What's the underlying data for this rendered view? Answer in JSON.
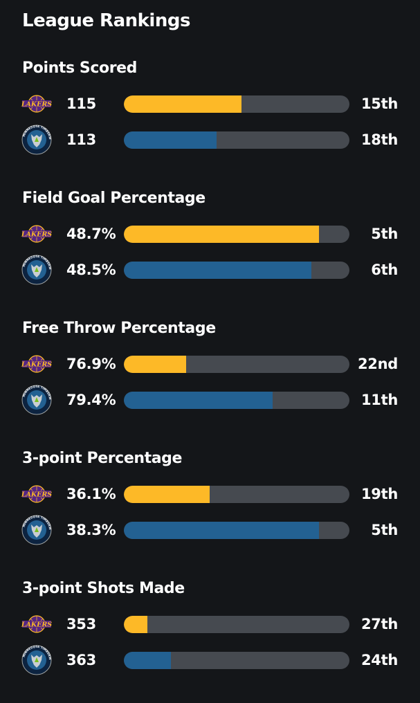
{
  "page": {
    "title": "League Rankings"
  },
  "colors": {
    "background": "#141619",
    "track": "#464a50",
    "lakers": "#fdb927",
    "timberwolves": "#236192"
  },
  "teams": [
    {
      "key": "lakers",
      "logo_icon": "lakers-logo-icon",
      "logo_text": "LAKERS"
    },
    {
      "key": "timberwolves",
      "logo_icon": "timberwolves-logo-icon",
      "logo_text": "MINNESOTA TIMBERWOLVES"
    }
  ],
  "sections": [
    {
      "title": "Points Scored",
      "rows": [
        {
          "team": "lakers",
          "value": "115",
          "fill": 0.52,
          "rank": "15th"
        },
        {
          "team": "timberwolves",
          "value": "113",
          "fill": 0.41,
          "rank": "18th"
        }
      ]
    },
    {
      "title": "Field Goal Percentage",
      "rows": [
        {
          "team": "lakers",
          "value": "48.7%",
          "fill": 0.865,
          "rank": "5th"
        },
        {
          "team": "timberwolves",
          "value": "48.5%",
          "fill": 0.83,
          "rank": "6th"
        }
      ]
    },
    {
      "title": "Free Throw Percentage",
      "rows": [
        {
          "team": "lakers",
          "value": "76.9%",
          "fill": 0.275,
          "rank": "22nd"
        },
        {
          "team": "timberwolves",
          "value": "79.4%",
          "fill": 0.66,
          "rank": "11th"
        }
      ]
    },
    {
      "title": "3-point Percentage",
      "rows": [
        {
          "team": "lakers",
          "value": "36.1%",
          "fill": 0.38,
          "rank": "19th"
        },
        {
          "team": "timberwolves",
          "value": "38.3%",
          "fill": 0.865,
          "rank": "5th"
        }
      ]
    },
    {
      "title": "3-point Shots Made",
      "rows": [
        {
          "team": "lakers",
          "value": "353",
          "fill": 0.105,
          "rank": "27th"
        },
        {
          "team": "timberwolves",
          "value": "363",
          "fill": 0.21,
          "rank": "24th"
        }
      ]
    }
  ]
}
